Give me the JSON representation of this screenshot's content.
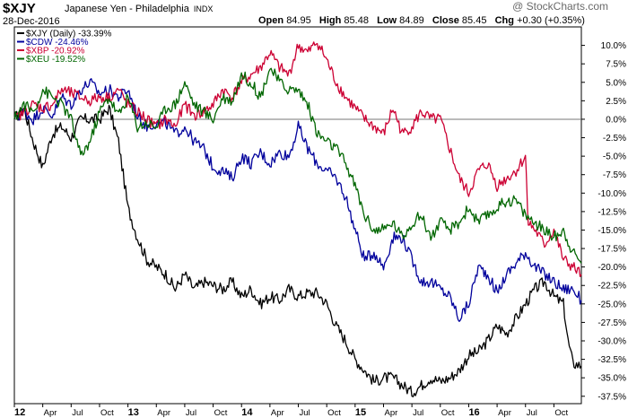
{
  "header": {
    "symbol": "$XJY",
    "name": "Japanese Yen - Philadelphia",
    "exchange": "INDX",
    "date": "28-Dec-2016",
    "open_label": "Open",
    "open": "84.95",
    "high_label": "High",
    "high": "85.48",
    "low_label": "Low",
    "low": "84.89",
    "close_label": "Close",
    "close": "85.45",
    "chg_label": "Chg",
    "chg": "+0.30 (+0.35%)",
    "watermark": "@ StockCharts.com"
  },
  "chart_data": {
    "type": "line",
    "ylim": [
      -38.5,
      12.5
    ],
    "yticks": [
      10,
      7.5,
      5,
      2.5,
      0,
      -2.5,
      -5,
      -7.5,
      -10,
      -12.5,
      -15,
      -17.5,
      -20,
      -22.5,
      -25,
      -27.5,
      -30,
      -32.5,
      -35,
      -37.5
    ],
    "ytick_labels": [
      "10.0%",
      "7.5%",
      "5.0%",
      "2.5%",
      "0.0%",
      "-2.5%",
      "-5.0%",
      "-7.5%",
      "-10.0%",
      "-12.5%",
      "-15.0%",
      "-17.5%",
      "-20.0%",
      "-22.5%",
      "-25.0%",
      "-27.5%",
      "-30.0%",
      "-32.5%",
      "-35.0%",
      "-37.5%"
    ],
    "xlim": [
      0,
      59.9
    ],
    "xticks": [
      {
        "label": "12",
        "x": 0,
        "major": true
      },
      {
        "label": "Apr",
        "x": 3
      },
      {
        "label": "Jul",
        "x": 6
      },
      {
        "label": "Oct",
        "x": 9
      },
      {
        "label": "13",
        "x": 12,
        "major": true
      },
      {
        "label": "Apr",
        "x": 15
      },
      {
        "label": "Jul",
        "x": 18
      },
      {
        "label": "Oct",
        "x": 21
      },
      {
        "label": "14",
        "x": 24,
        "major": true
      },
      {
        "label": "Apr",
        "x": 27
      },
      {
        "label": "Jul",
        "x": 30
      },
      {
        "label": "Oct",
        "x": 33
      },
      {
        "label": "15",
        "x": 36,
        "major": true
      },
      {
        "label": "Apr",
        "x": 39
      },
      {
        "label": "Jul",
        "x": 42
      },
      {
        "label": "Oct",
        "x": 45
      },
      {
        "label": "16",
        "x": 48,
        "major": true
      },
      {
        "label": "Apr",
        "x": 51
      },
      {
        "label": "Jul",
        "x": 54
      },
      {
        "label": "Oct",
        "x": 57
      }
    ],
    "series": [
      {
        "name": "$XJY (Daily) -33.39%",
        "color": "#000000",
        "points": [
          [
            0,
            0
          ],
          [
            1,
            1.5
          ],
          [
            2,
            -3
          ],
          [
            3,
            -6.5
          ],
          [
            4,
            -2
          ],
          [
            5,
            -1
          ],
          [
            6,
            -2.5
          ],
          [
            7,
            0
          ],
          [
            8,
            0
          ],
          [
            9,
            0
          ],
          [
            10,
            1.5
          ],
          [
            11,
            -3
          ],
          [
            12,
            -12
          ],
          [
            13,
            -16
          ],
          [
            14,
            -19
          ],
          [
            15,
            -20
          ],
          [
            16,
            -21
          ],
          [
            17,
            -23
          ],
          [
            18,
            -21
          ],
          [
            19,
            -23
          ],
          [
            20,
            -22
          ],
          [
            21,
            -22.5
          ],
          [
            22,
            -23
          ],
          [
            23,
            -22
          ],
          [
            24,
            -24
          ],
          [
            25,
            -23
          ],
          [
            26,
            -25
          ],
          [
            27,
            -24
          ],
          [
            28,
            -24.5
          ],
          [
            29,
            -23
          ],
          [
            30,
            -24
          ],
          [
            31,
            -23.5
          ],
          [
            32,
            -23.5
          ],
          [
            33,
            -25
          ],
          [
            34,
            -28
          ],
          [
            35,
            -30
          ],
          [
            36,
            -32.5
          ],
          [
            37,
            -34
          ],
          [
            38,
            -35.5
          ],
          [
            39,
            -35
          ],
          [
            40,
            -35
          ],
          [
            41,
            -36
          ],
          [
            42,
            -37
          ],
          [
            43,
            -36
          ],
          [
            44,
            -35
          ],
          [
            45,
            -35.5
          ],
          [
            46,
            -35
          ],
          [
            47,
            -34
          ],
          [
            48,
            -32
          ],
          [
            49,
            -31.5
          ],
          [
            50,
            -30
          ],
          [
            51,
            -28
          ],
          [
            52,
            -29
          ],
          [
            53,
            -27
          ],
          [
            54,
            -25
          ],
          [
            55,
            -23
          ],
          [
            56,
            -22
          ],
          [
            57,
            -24
          ],
          [
            58,
            -25
          ],
          [
            58.5,
            -30
          ],
          [
            59,
            -33
          ],
          [
            59.9,
            -33.4
          ]
        ]
      },
      {
        "name": "$CDW -24.46%",
        "color": "#00009c",
        "points": [
          [
            0,
            0
          ],
          [
            1,
            1
          ],
          [
            2,
            0
          ],
          [
            3,
            1.5
          ],
          [
            4,
            0.5
          ],
          [
            5,
            3
          ],
          [
            6,
            2
          ],
          [
            7,
            4
          ],
          [
            8,
            5
          ],
          [
            9,
            3.5
          ],
          [
            10,
            4
          ],
          [
            11,
            3
          ],
          [
            12,
            4
          ],
          [
            13,
            0.5
          ],
          [
            14,
            -1
          ],
          [
            15,
            -0.5
          ],
          [
            16,
            -0.5
          ],
          [
            17,
            -2
          ],
          [
            18,
            -1
          ],
          [
            19,
            -3
          ],
          [
            20,
            -4
          ],
          [
            21,
            -6.5
          ],
          [
            22,
            -7
          ],
          [
            23,
            -8
          ],
          [
            24,
            -5
          ],
          [
            25,
            -6
          ],
          [
            26,
            -4.5
          ],
          [
            27,
            -6
          ],
          [
            28,
            -4.5
          ],
          [
            29,
            -5
          ],
          [
            30,
            -1
          ],
          [
            31,
            -4
          ],
          [
            32,
            -6
          ],
          [
            33,
            -7
          ],
          [
            34,
            -8
          ],
          [
            35,
            -10.5
          ],
          [
            36,
            -15
          ],
          [
            37,
            -19
          ],
          [
            38,
            -18
          ],
          [
            39,
            -20
          ],
          [
            40,
            -16
          ],
          [
            41,
            -16
          ],
          [
            42,
            -19
          ],
          [
            43,
            -22
          ],
          [
            44,
            -22
          ],
          [
            45,
            -23
          ],
          [
            46,
            -24
          ],
          [
            47,
            -27
          ],
          [
            48,
            -25
          ],
          [
            49,
            -20
          ],
          [
            50,
            -21
          ],
          [
            51,
            -23.5
          ],
          [
            52,
            -21
          ],
          [
            53,
            -19.5
          ],
          [
            54,
            -18
          ],
          [
            55,
            -20
          ],
          [
            56,
            -21
          ],
          [
            57,
            -22
          ],
          [
            58,
            -23
          ],
          [
            59,
            -23
          ],
          [
            59.9,
            -24.5
          ]
        ]
      },
      {
        "name": "$XBP -20.92%",
        "color": "#cc0033",
        "points": [
          [
            0,
            0
          ],
          [
            1,
            1
          ],
          [
            2,
            2
          ],
          [
            3,
            1.5
          ],
          [
            4,
            2
          ],
          [
            5,
            4
          ],
          [
            6,
            3.5
          ],
          [
            7,
            3
          ],
          [
            8,
            2.5
          ],
          [
            9,
            3
          ],
          [
            10,
            3
          ],
          [
            11,
            4
          ],
          [
            12,
            2
          ],
          [
            13,
            1
          ],
          [
            14,
            0
          ],
          [
            15,
            -1
          ],
          [
            16,
            0
          ],
          [
            17,
            -1
          ],
          [
            18,
            2
          ],
          [
            19,
            0.5
          ],
          [
            20,
            1
          ],
          [
            21,
            2
          ],
          [
            22,
            4
          ],
          [
            23,
            3
          ],
          [
            24,
            5
          ],
          [
            25,
            6
          ],
          [
            26,
            7
          ],
          [
            27,
            9
          ],
          [
            28,
            7
          ],
          [
            29,
            6
          ],
          [
            30,
            10
          ],
          [
            31,
            9
          ],
          [
            32,
            10.5
          ],
          [
            33,
            8
          ],
          [
            34,
            5
          ],
          [
            35,
            3
          ],
          [
            36,
            1.5
          ],
          [
            37,
            0
          ],
          [
            38,
            -1
          ],
          [
            39,
            -2
          ],
          [
            40,
            1.5
          ],
          [
            41,
            -2
          ],
          [
            42,
            -1
          ],
          [
            43,
            1
          ],
          [
            44,
            0
          ],
          [
            45,
            0
          ],
          [
            46,
            -4
          ],
          [
            47,
            -8
          ],
          [
            48,
            -10
          ],
          [
            49,
            -7
          ],
          [
            50,
            -6
          ],
          [
            51,
            -9
          ],
          [
            52,
            -8
          ],
          [
            53,
            -7
          ],
          [
            54,
            -5
          ],
          [
            54.3,
            -14
          ],
          [
            55,
            -15
          ],
          [
            56,
            -17
          ],
          [
            57,
            -15
          ],
          [
            58,
            -19
          ],
          [
            59,
            -20
          ],
          [
            59.9,
            -21
          ]
        ]
      },
      {
        "name": "$XEU -19.52%",
        "color": "#006600",
        "points": [
          [
            0,
            0
          ],
          [
            1,
            2
          ],
          [
            2,
            1
          ],
          [
            3,
            4
          ],
          [
            4,
            3
          ],
          [
            5,
            2
          ],
          [
            6,
            0
          ],
          [
            7,
            -5
          ],
          [
            8,
            -3
          ],
          [
            9,
            1
          ],
          [
            10,
            3
          ],
          [
            11,
            0.5
          ],
          [
            12,
            3
          ],
          [
            13,
            -1
          ],
          [
            14,
            -0.5
          ],
          [
            15,
            -1
          ],
          [
            16,
            1.5
          ],
          [
            17,
            2
          ],
          [
            18,
            5
          ],
          [
            19,
            2
          ],
          [
            20,
            1
          ],
          [
            21,
            0
          ],
          [
            22,
            3
          ],
          [
            23,
            2.5
          ],
          [
            24,
            6
          ],
          [
            25,
            5
          ],
          [
            26,
            3
          ],
          [
            27,
            7
          ],
          [
            28,
            5
          ],
          [
            29,
            4
          ],
          [
            30,
            4
          ],
          [
            31,
            2
          ],
          [
            32,
            -2
          ],
          [
            33,
            -3
          ],
          [
            34,
            -4
          ],
          [
            35,
            -6
          ],
          [
            36,
            -9
          ],
          [
            37,
            -13
          ],
          [
            38,
            -15
          ],
          [
            39,
            -15
          ],
          [
            40,
            -14
          ],
          [
            41,
            -16
          ],
          [
            42,
            -14
          ],
          [
            43,
            -13
          ],
          [
            44,
            -16
          ],
          [
            45,
            -14
          ],
          [
            46,
            -15
          ],
          [
            47,
            -14
          ],
          [
            48,
            -12
          ],
          [
            49,
            -14
          ],
          [
            50,
            -13
          ],
          [
            51,
            -12
          ],
          [
            52,
            -11
          ],
          [
            53,
            -11
          ],
          [
            54,
            -13
          ],
          [
            55,
            -14
          ],
          [
            56,
            -15
          ],
          [
            57,
            -16
          ],
          [
            58,
            -15
          ],
          [
            59,
            -18
          ],
          [
            59.9,
            -19.5
          ]
        ]
      }
    ]
  }
}
